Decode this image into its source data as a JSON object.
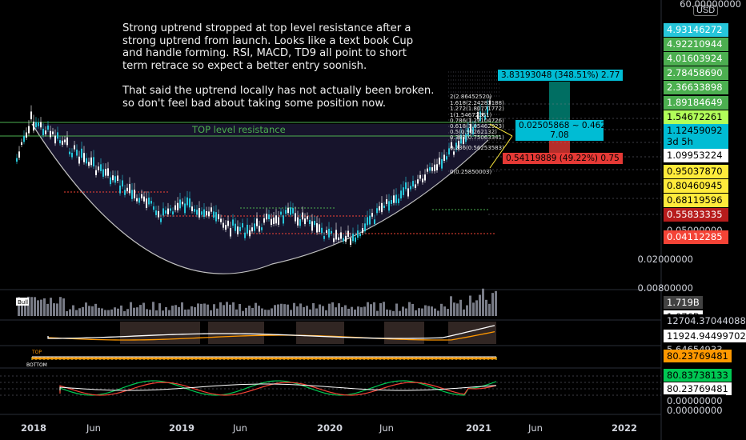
{
  "note": {
    "text": "Strong uptrend stropped at top level resistance after a strong uptrend from launch. Looks like a text book Cup and handle forming. RSI, MACD, TD9 all point to short term retrace so expect a better entry soonish.\n\nThat said the uptrend locally has not actually been broken. so don't feel bad about taking some position now."
  },
  "resistance_label": "TOP level resistance",
  "currency": "USD",
  "top_axis_value": "60.00000000",
  "price_labels": [
    {
      "text": "4.93146272",
      "bg": "#26c6da",
      "fg": "#ffffff"
    },
    {
      "text": "4.92210944",
      "bg": "#4caf50",
      "fg": "#ffffff"
    },
    {
      "text": "4.01603924",
      "bg": "#4caf50",
      "fg": "#ffffff"
    },
    {
      "text": "2.78458690",
      "bg": "#4caf50",
      "fg": "#ffffff"
    },
    {
      "text": "2.36633898",
      "bg": "#4caf50",
      "fg": "#ffffff"
    },
    {
      "text": "1.89184649",
      "bg": "#4caf50",
      "fg": "#ffffff"
    },
    {
      "text": "1.54672261",
      "bg": "#b2ff59",
      "fg": "#000000"
    },
    {
      "text": "1.12459092",
      "bg": "#00bcd4",
      "fg": "#000000"
    },
    {
      "text": "3d 5h",
      "bg": "#00bcd4",
      "fg": "#000000"
    },
    {
      "text": "1.09953224",
      "bg": "#ffffff",
      "fg": "#000000"
    },
    {
      "text": "0.95037870",
      "bg": "#ffeb3b",
      "fg": "#000000"
    },
    {
      "text": "0.80460945",
      "bg": "#ffeb3b",
      "fg": "#000000"
    },
    {
      "text": "0.68119596",
      "bg": "#ffeb3b",
      "fg": "#000000"
    },
    {
      "text": "0.55833335",
      "bg": "#b71c1c",
      "fg": "#ffffff"
    },
    {
      "text": "0.05000000",
      "bg": "#000000",
      "fg": "#d1d4dc"
    },
    {
      "text": "0.04112285",
      "bg": "#f44336",
      "fg": "#ffffff"
    }
  ],
  "axis_levels": [
    "0.02000000",
    "0.00800000"
  ],
  "indicator_labels": [
    {
      "text": "1.719B",
      "bg": "#424242",
      "fg": "#ffffff"
    },
    {
      "text": "1.076B",
      "bg": "#ffffff",
      "fg": "#000000"
    },
    {
      "text": "12704.37044088",
      "bg": "#000000",
      "fg": "#d1d4dc"
    },
    {
      "text": "11924.94499702",
      "bg": "#ffffff",
      "fg": "#000000"
    },
    {
      "text": "5.64654933",
      "bg": "#000000",
      "fg": "#d1d4dc"
    },
    {
      "text": "80.23769481",
      "bg": "#ff9800",
      "fg": "#000000"
    },
    {
      "text": "80.83738133",
      "bg": "#00c853",
      "fg": "#000000"
    },
    {
      "text": "80.23769481",
      "bg": "#ffffff",
      "fg": "#000000"
    },
    {
      "text": "0.00000000",
      "bg": "#000000",
      "fg": "#d1d4dc"
    },
    {
      "text": "0.00000000",
      "bg": "#000000",
      "fg": "#d1d4dc"
    }
  ],
  "time_axis": [
    "2018",
    "Jun",
    "2019",
    "Jun",
    "2020",
    "Jun",
    "2021",
    "Jun",
    "2022"
  ],
  "position_tool": {
    "target": "3.83193048 (348.51%) 2.77",
    "entry": "0.02505868 ~ 0.462",
    "entry2": "7.08",
    "stop": "0.54119889 (49.22%) 0.75"
  },
  "fib_labels": [
    "1(1.54672261)",
    "0.786(1.27104726)",
    "0.618(1.05462923)",
    "0.5(0.90262132)",
    "0.382(0.75063341)",
    "0.236(0.56253583)",
    "0(0.25850003)",
    "1.618(2.24283188)",
    "1.272(1.80771772)",
    "2(2.86452520)"
  ],
  "volume_tag": "Bull",
  "td_labels": [
    "TOP",
    "BOTTOM"
  ]
}
